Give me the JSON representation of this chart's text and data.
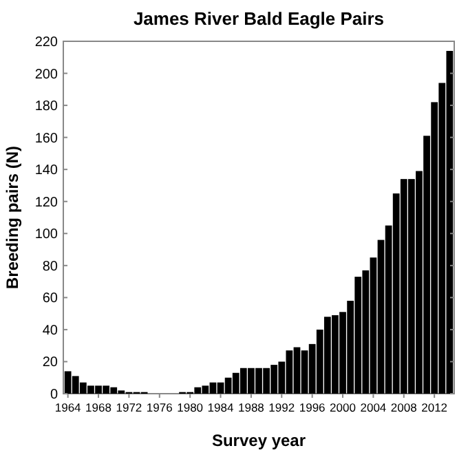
{
  "chart_data": {
    "type": "bar",
    "title": "James River Bald Eagle Pairs",
    "xlabel": "Survey year",
    "ylabel": "Breeding pairs (N)",
    "x": [
      1964,
      1965,
      1966,
      1967,
      1968,
      1969,
      1970,
      1971,
      1972,
      1973,
      1974,
      1975,
      1976,
      1977,
      1978,
      1979,
      1980,
      1981,
      1982,
      1983,
      1984,
      1985,
      1986,
      1987,
      1988,
      1989,
      1990,
      1991,
      1992,
      1993,
      1994,
      1995,
      1996,
      1997,
      1998,
      1999,
      2000,
      2001,
      2002,
      2003,
      2004,
      2005,
      2006,
      2007,
      2008,
      2009,
      2010,
      2011,
      2012,
      2013,
      2014
    ],
    "values": [
      14,
      11,
      7,
      5,
      5,
      5,
      4,
      2,
      1,
      1,
      1,
      0,
      0,
      0,
      0,
      1,
      1,
      4,
      5,
      7,
      7,
      10,
      13,
      16,
      16,
      16,
      16,
      18,
      20,
      27,
      29,
      27,
      31,
      40,
      48,
      49,
      51,
      58,
      73,
      77,
      85,
      96,
      105,
      125,
      134,
      134,
      139,
      161,
      182,
      194,
      214
    ],
    "color": "#000000",
    "xlim": [
      1963.4,
      2014.6
    ],
    "xticks": [
      1964,
      1968,
      1972,
      1976,
      1980,
      1984,
      1988,
      1992,
      1996,
      2000,
      2004,
      2008,
      2012
    ],
    "ylim": [
      0,
      220
    ],
    "yticks": [
      0,
      20,
      40,
      60,
      80,
      100,
      120,
      140,
      160,
      180,
      200,
      220
    ],
    "grid": false
  }
}
